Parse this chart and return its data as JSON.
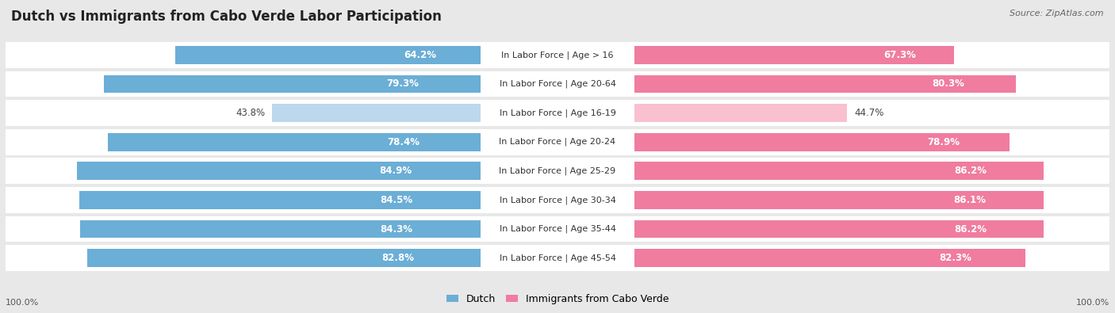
{
  "title": "Dutch vs Immigrants from Cabo Verde Labor Participation",
  "source": "Source: ZipAtlas.com",
  "categories": [
    "In Labor Force | Age > 16",
    "In Labor Force | Age 20-64",
    "In Labor Force | Age 16-19",
    "In Labor Force | Age 20-24",
    "In Labor Force | Age 25-29",
    "In Labor Force | Age 30-34",
    "In Labor Force | Age 35-44",
    "In Labor Force | Age 45-54"
  ],
  "dutch_values": [
    64.2,
    79.3,
    43.8,
    78.4,
    84.9,
    84.5,
    84.3,
    82.8
  ],
  "cabo_values": [
    67.3,
    80.3,
    44.7,
    78.9,
    86.2,
    86.1,
    86.2,
    82.3
  ],
  "dutch_color": "#6baed6",
  "cabo_color": "#f07ca0",
  "dutch_light_color": "#bdd7ed",
  "cabo_light_color": "#f9c0d0",
  "bg_color": "#e8e8e8",
  "row_bg": "#f5f5f5",
  "max_value": 100.0,
  "bar_height": 0.62,
  "legend_dutch": "Dutch",
  "legend_cabo": "Immigrants from Cabo Verde",
  "light_rows": [
    2
  ],
  "title_fontsize": 12,
  "label_fontsize": 8.5,
  "cat_fontsize": 8,
  "source_fontsize": 8
}
